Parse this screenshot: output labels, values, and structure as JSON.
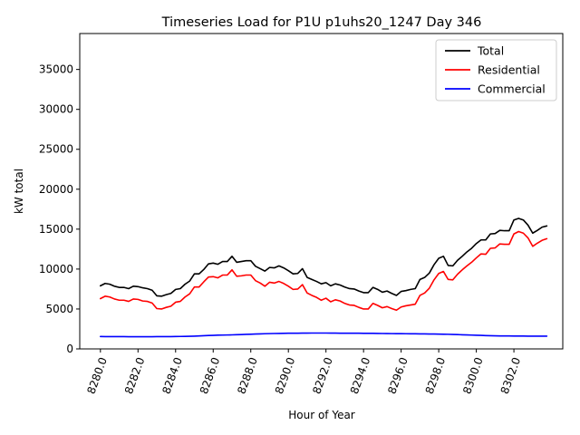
{
  "chart_data": {
    "type": "line",
    "title": "Timeseries Load for P1U p1uhs20_1247  Day 346",
    "xlabel": "Hour of Year",
    "ylabel": "kW total",
    "xlim": [
      8278.9,
      8304.6
    ],
    "ylim": [
      0,
      39500
    ],
    "x_ticks": [
      8280,
      8282,
      8284,
      8286,
      8288,
      8290,
      8292,
      8294,
      8296,
      8298,
      8300,
      8302
    ],
    "x_tick_labels": [
      "8280.0",
      "8282.0",
      "8284.0",
      "8286.0",
      "8288.0",
      "8290.0",
      "8292.0",
      "8294.0",
      "8296.0",
      "8298.0",
      "8300.0",
      "8302.0"
    ],
    "y_ticks": [
      0,
      5000,
      10000,
      15000,
      20000,
      25000,
      30000,
      35000
    ],
    "y_tick_labels": [
      "0",
      "5000",
      "10000",
      "15000",
      "20000",
      "25000",
      "30000",
      "35000"
    ],
    "legend_position": "top-right",
    "x_start": 8280,
    "x_step": 0.25,
    "series": [
      {
        "name": "Total",
        "color": "#000000",
        "values": [
          7900,
          8200,
          8100,
          7850,
          7700,
          7700,
          7550,
          7850,
          7800,
          7650,
          7550,
          7350,
          6650,
          6600,
          6800,
          6950,
          7450,
          7550,
          8100,
          8500,
          9400,
          9400,
          9950,
          10650,
          10750,
          10600,
          10950,
          10950,
          11600,
          10850,
          10950,
          11050,
          11050,
          10350,
          10050,
          9750,
          10200,
          10150,
          10400,
          10150,
          9800,
          9400,
          9450,
          10050,
          8950,
          8700,
          8450,
          8150,
          8300,
          7900,
          8150,
          8000,
          7750,
          7550,
          7500,
          7250,
          7050,
          7050,
          7700,
          7450,
          7100,
          7250,
          6950,
          6700,
          7200,
          7300,
          7450,
          7550,
          8700,
          8950,
          9500,
          10550,
          11350,
          11600,
          10450,
          10400,
          11100,
          11600,
          12150,
          12600,
          13200,
          13650,
          13650,
          14400,
          14450,
          14850,
          14800,
          14800,
          16150,
          16350,
          16150,
          15500,
          14500,
          14850,
          15250,
          15400
        ]
      },
      {
        "name": "Residential",
        "color": "#ff0000",
        "values": [
          6300,
          6600,
          6500,
          6250,
          6100,
          6100,
          5950,
          6250,
          6200,
          6000,
          5950,
          5750,
          5050,
          5000,
          5200,
          5350,
          5850,
          5950,
          6500,
          6900,
          7750,
          7750,
          8400,
          9000,
          9050,
          8900,
          9250,
          9250,
          9900,
          9100,
          9150,
          9250,
          9250,
          8550,
          8250,
          7850,
          8350,
          8250,
          8450,
          8200,
          7850,
          7450,
          7500,
          8050,
          7000,
          6700,
          6450,
          6100,
          6350,
          5900,
          6150,
          6000,
          5700,
          5500,
          5450,
          5200,
          5000,
          5000,
          5700,
          5450,
          5150,
          5300,
          5050,
          4850,
          5250,
          5400,
          5500,
          5600,
          6700,
          7000,
          7600,
          8650,
          9450,
          9700,
          8700,
          8650,
          9350,
          9900,
          10400,
          10850,
          11400,
          11900,
          11850,
          12600,
          12650,
          13150,
          13100,
          13100,
          14400,
          14700,
          14500,
          13900,
          12850,
          13250,
          13600,
          13800
        ]
      },
      {
        "name": "Commercial",
        "color": "#0000ff",
        "values": [
          1550,
          1545,
          1540,
          1540,
          1535,
          1535,
          1530,
          1530,
          1530,
          1530,
          1530,
          1530,
          1535,
          1535,
          1540,
          1545,
          1550,
          1560,
          1570,
          1580,
          1600,
          1620,
          1650,
          1680,
          1700,
          1720,
          1730,
          1745,
          1760,
          1780,
          1800,
          1820,
          1840,
          1860,
          1880,
          1900,
          1915,
          1930,
          1940,
          1950,
          1960,
          1965,
          1970,
          1975,
          1980,
          1985,
          1985,
          1985,
          1985,
          1980,
          1975,
          1970,
          1965,
          1960,
          1960,
          1960,
          1955,
          1950,
          1945,
          1940,
          1930,
          1920,
          1915,
          1910,
          1905,
          1900,
          1895,
          1890,
          1885,
          1880,
          1870,
          1860,
          1850,
          1840,
          1830,
          1810,
          1790,
          1770,
          1750,
          1730,
          1710,
          1690,
          1670,
          1650,
          1640,
          1630,
          1625,
          1620,
          1615,
          1610,
          1605,
          1600,
          1600,
          1600,
          1600,
          1600
        ]
      }
    ]
  }
}
